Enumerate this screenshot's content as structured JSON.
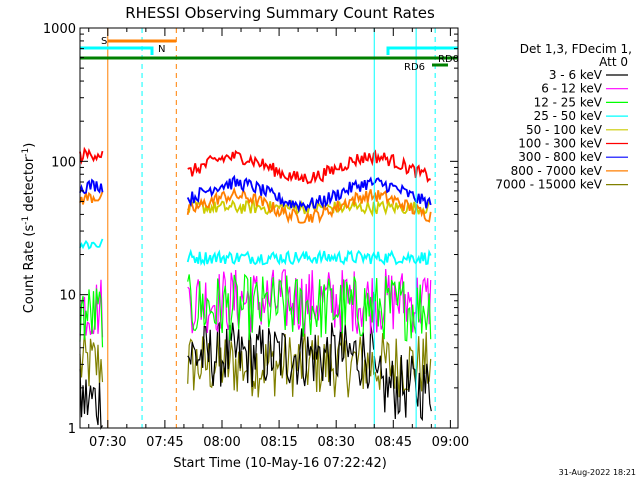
{
  "chart_data": {
    "type": "line",
    "title": "RHESSI Observing Summary Count Rates",
    "xlabel": "Start Time (10-May-16 07:22:42)",
    "ylabel": "Count Rate (s⁻¹ detector⁻¹)",
    "ylabel_parts": {
      "pre": "Count Rate (s",
      "sup1": "-1",
      "mid": " detector",
      "sup2": "-1",
      "post": ")"
    },
    "yscale": "log",
    "ylim": [
      1,
      1000
    ],
    "ytick_labels": [
      "1",
      "10",
      "100",
      "1000"
    ],
    "xlim": [
      "07:22:42",
      "09:02:00"
    ],
    "xtick_labels": [
      "07:30",
      "07:45",
      "08:00",
      "08:15",
      "08:30",
      "08:45",
      "09:00"
    ],
    "legend_title": [
      "Det 1,3, FDecim 1,",
      "Att 0"
    ],
    "legend_position": "right",
    "timestamp": "31-Aug-2022 18:21",
    "flags": {
      "S": {
        "label": "S",
        "color": "#ff7f00",
        "start": "07:30",
        "end": "07:48"
      },
      "N": {
        "label": "N",
        "color": "#00ffff"
      },
      "RD0": {
        "label": "RD0",
        "color": "#008000"
      },
      "RD6": {
        "label": "RD6",
        "color": "#008000"
      }
    },
    "vertical_markers": [
      {
        "time": "07:30",
        "color": "#ff7f00",
        "style": "solid"
      },
      {
        "time": "07:39",
        "color": "#00ffff",
        "style": "dashed"
      },
      {
        "time": "07:48",
        "color": "#ff7f00",
        "style": "dashed"
      },
      {
        "time": "08:40",
        "color": "#00ffff",
        "style": "solid"
      },
      {
        "time": "08:51",
        "color": "#00ffff",
        "style": "solid"
      },
      {
        "time": "08:56",
        "color": "#00ffff",
        "style": "dashed"
      }
    ],
    "series": [
      {
        "name": "3 - 6 keV",
        "color": "#000000",
        "typical": 3,
        "segments": [
          {
            "from": "07:22:42",
            "to": "07:29",
            "value": 1.6
          },
          {
            "from": "07:51",
            "to": "08:40",
            "value": 3.5
          },
          {
            "from": "08:40",
            "to": "08:55",
            "value": 2.0
          }
        ]
      },
      {
        "name": "6 - 12 keV",
        "color": "#ff00ff",
        "typical": 8,
        "segments": [
          {
            "from": "07:22:42",
            "to": "07:29",
            "value": 8
          },
          {
            "from": "07:51",
            "to": "08:55",
            "value": 9
          }
        ]
      },
      {
        "name": "12 - 25 keV",
        "color": "#00ff00",
        "typical": 8,
        "segments": [
          {
            "from": "07:22:42",
            "to": "07:29",
            "value": 7
          },
          {
            "from": "07:51",
            "to": "08:55",
            "value": 8
          }
        ]
      },
      {
        "name": "25 - 50 keV",
        "color": "#00ffff",
        "typical": 20,
        "segments": [
          {
            "from": "07:22:42",
            "to": "07:29",
            "value": 24
          },
          {
            "from": "07:51",
            "to": "08:55",
            "value": 19
          }
        ]
      },
      {
        "name": "50 - 100 keV",
        "color": "#cccc00",
        "typical": 45,
        "segments": [
          {
            "from": "07:51",
            "to": "08:55",
            "value": 45
          }
        ]
      },
      {
        "name": "100 - 300 keV",
        "color": "#ff0000",
        "typical": 90,
        "segments": [
          {
            "from": "07:22:42",
            "to": "07:29",
            "value": 95
          },
          {
            "from": "07:51",
            "to": "08:55",
            "value": 90
          }
        ]
      },
      {
        "name": "300 - 800 keV",
        "color": "#0000ff",
        "typical": 57,
        "segments": [
          {
            "from": "07:22:42",
            "to": "07:29",
            "value": 55
          },
          {
            "from": "07:51",
            "to": "08:55",
            "value": 57
          }
        ]
      },
      {
        "name": "800 - 7000 keV",
        "color": "#ff7f00",
        "typical": 46,
        "segments": [
          {
            "from": "07:22:42",
            "to": "07:29",
            "value": 45
          },
          {
            "from": "07:51",
            "to": "08:55",
            "value": 46
          }
        ]
      },
      {
        "name": "7000 - 15000 keV",
        "color": "#808000",
        "typical": 3,
        "segments": [
          {
            "from": "07:22:42",
            "to": "07:29",
            "value": 3
          },
          {
            "from": "07:51",
            "to": "08:55",
            "value": 3
          }
        ]
      }
    ]
  }
}
